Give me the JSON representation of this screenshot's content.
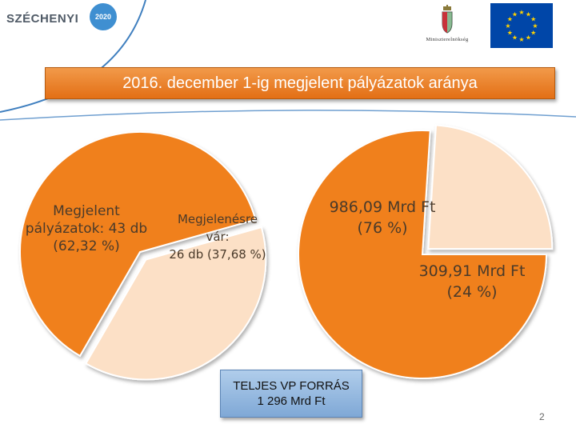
{
  "logos": {
    "szechenyi_text": "SZÉCHENYI",
    "szechenyi_year": "2020",
    "ministry_text": "Miniszterelnökség"
  },
  "title": "2016. december 1-ig megjelent pályázatok aránya",
  "source_box": {
    "line1": "TELJES VP FORRÁS",
    "line2": "1 296 Mrd Ft"
  },
  "page_number": "2",
  "colors": {
    "slice_main": "#f0801e",
    "slice_secondary": "#fce0c6",
    "title_bar": "#e8791c",
    "source_box": "#9dbfe5"
  },
  "chart_data": [
    {
      "type": "pie",
      "title": "",
      "slices": [
        {
          "label_lines": [
            "Megjelent",
            "pályázatok: 43 db",
            "(62,32 %)"
          ],
          "value": 62.32
        },
        {
          "label_lines": [
            "Megjelenésre",
            "vár:",
            "26 db (37,68 %)"
          ],
          "value": 37.68
        }
      ]
    },
    {
      "type": "pie",
      "title": "",
      "slices": [
        {
          "label_lines": [
            "986,09 Mrd Ft",
            "(76 %)"
          ],
          "value": 76
        },
        {
          "label_lines": [
            "309,91 Mrd Ft",
            "(24 %)"
          ],
          "value": 24
        }
      ]
    }
  ]
}
